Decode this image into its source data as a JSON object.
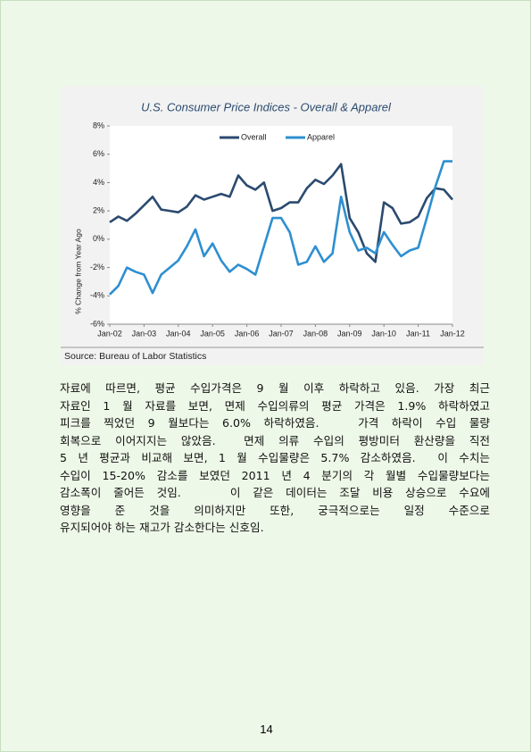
{
  "chart_data": {
    "type": "line",
    "title": "U.S. Consumer Price Indices - Overall & Apparel",
    "y_label": "% Change from Year Ago",
    "source": "Source: Bureau of Labor Statistics",
    "x": [
      2002,
      2002.25,
      2002.5,
      2002.75,
      2003,
      2003.25,
      2003.5,
      2003.75,
      2004,
      2004.25,
      2004.5,
      2004.75,
      2005,
      2005.25,
      2005.5,
      2005.75,
      2006,
      2006.25,
      2006.5,
      2006.75,
      2007,
      2007.25,
      2007.5,
      2007.75,
      2008,
      2008.25,
      2008.5,
      2008.75,
      2009,
      2009.25,
      2009.5,
      2009.75,
      2010,
      2010.25,
      2010.5,
      2010.75,
      2011,
      2011.25,
      2011.5,
      2011.75,
      2012
    ],
    "series": [
      {
        "name": "Overall",
        "color": "#2b4a6f",
        "values": [
          1.2,
          1.6,
          1.3,
          1.8,
          2.4,
          3.0,
          2.1,
          2.0,
          1.9,
          2.3,
          3.1,
          2.8,
          3.0,
          3.2,
          3.0,
          4.5,
          3.8,
          3.5,
          4.0,
          2.0,
          2.2,
          2.6,
          2.6,
          3.6,
          4.2,
          3.9,
          4.5,
          5.3,
          1.5,
          0.5,
          -1.0,
          -1.6,
          2.6,
          2.2,
          1.1,
          1.2,
          1.6,
          2.9,
          3.6,
          3.5,
          2.8
        ]
      },
      {
        "name": "Apparel",
        "color": "#2e8fd0",
        "values": [
          -3.9,
          -3.3,
          -2.0,
          -2.3,
          -2.5,
          -3.8,
          -2.5,
          -2.0,
          -1.5,
          -0.5,
          0.7,
          -1.2,
          -0.3,
          -1.5,
          -2.3,
          -1.8,
          -2.1,
          -2.5,
          -0.5,
          1.5,
          1.5,
          0.5,
          -1.8,
          -1.6,
          -0.5,
          -1.6,
          -1.0,
          3.0,
          0.5,
          -0.8,
          -0.6,
          -1.0,
          0.5,
          -0.4,
          -1.2,
          -0.8,
          -0.6,
          1.5,
          3.7,
          5.5,
          5.5
        ]
      }
    ],
    "xlim": [
      2002,
      2012
    ],
    "xticks": [
      {
        "value": 2002,
        "label": "Jan-02"
      },
      {
        "value": 2003,
        "label": "Jan-03"
      },
      {
        "value": 2004,
        "label": "Jan-04"
      },
      {
        "value": 2005,
        "label": "Jan-05"
      },
      {
        "value": 2006,
        "label": "Jan-06"
      },
      {
        "value": 2007,
        "label": "Jan-07"
      },
      {
        "value": 2008,
        "label": "Jan-08"
      },
      {
        "value": 2009,
        "label": "Jan-09"
      },
      {
        "value": 2010,
        "label": "Jan-10"
      },
      {
        "value": 2011,
        "label": "Jan-11"
      },
      {
        "value": 2012,
        "label": "Jan-12"
      }
    ],
    "ylim": [
      -6,
      8
    ],
    "yticks": [
      {
        "value": -6,
        "label": "-6%"
      },
      {
        "value": -4,
        "label": "-4%"
      },
      {
        "value": -2,
        "label": "-2%"
      },
      {
        "value": 0,
        "label": "0%"
      },
      {
        "value": 2,
        "label": "2%"
      },
      {
        "value": 4,
        "label": "4%"
      },
      {
        "value": 6,
        "label": "6%"
      },
      {
        "value": 8,
        "label": "8%"
      }
    ],
    "legend": "top"
  },
  "body": {
    "lines": [
      "자료에 따르면, 평균 수입가격은 9 월 이후 하락하고 있음. 가장 최근",
      "자료인 1 월 자료를 보면, 면제 수입의류의 평균 가격은 1.9% 하락하였고",
      "피크를 찍었던 9 월보다는 6.0% 하락하였음.   가격 하락이 수입 물량",
      "회복으로 이어지지는 않았음.  면제 의류 수입의 평방미터 환산량을 직전",
      "5 년 평균과 비교해 보면, 1 월 수입물량은 5.7% 감소하였음.  이 수치는",
      "수입이 15-20% 감소를 보였던 2011 년 4 분기의 각 월별 수입물량보다는",
      "감소폭이 줄어든 것임.    이 같은 데이터는 조달 비용 상승으로 수요에",
      "영향을 준 것을 의미하지만 또한, 궁극적으로는 일정 수준으로",
      "유지되어야 하는 재고가 감소한다는 신호임."
    ]
  },
  "page_number": "14"
}
